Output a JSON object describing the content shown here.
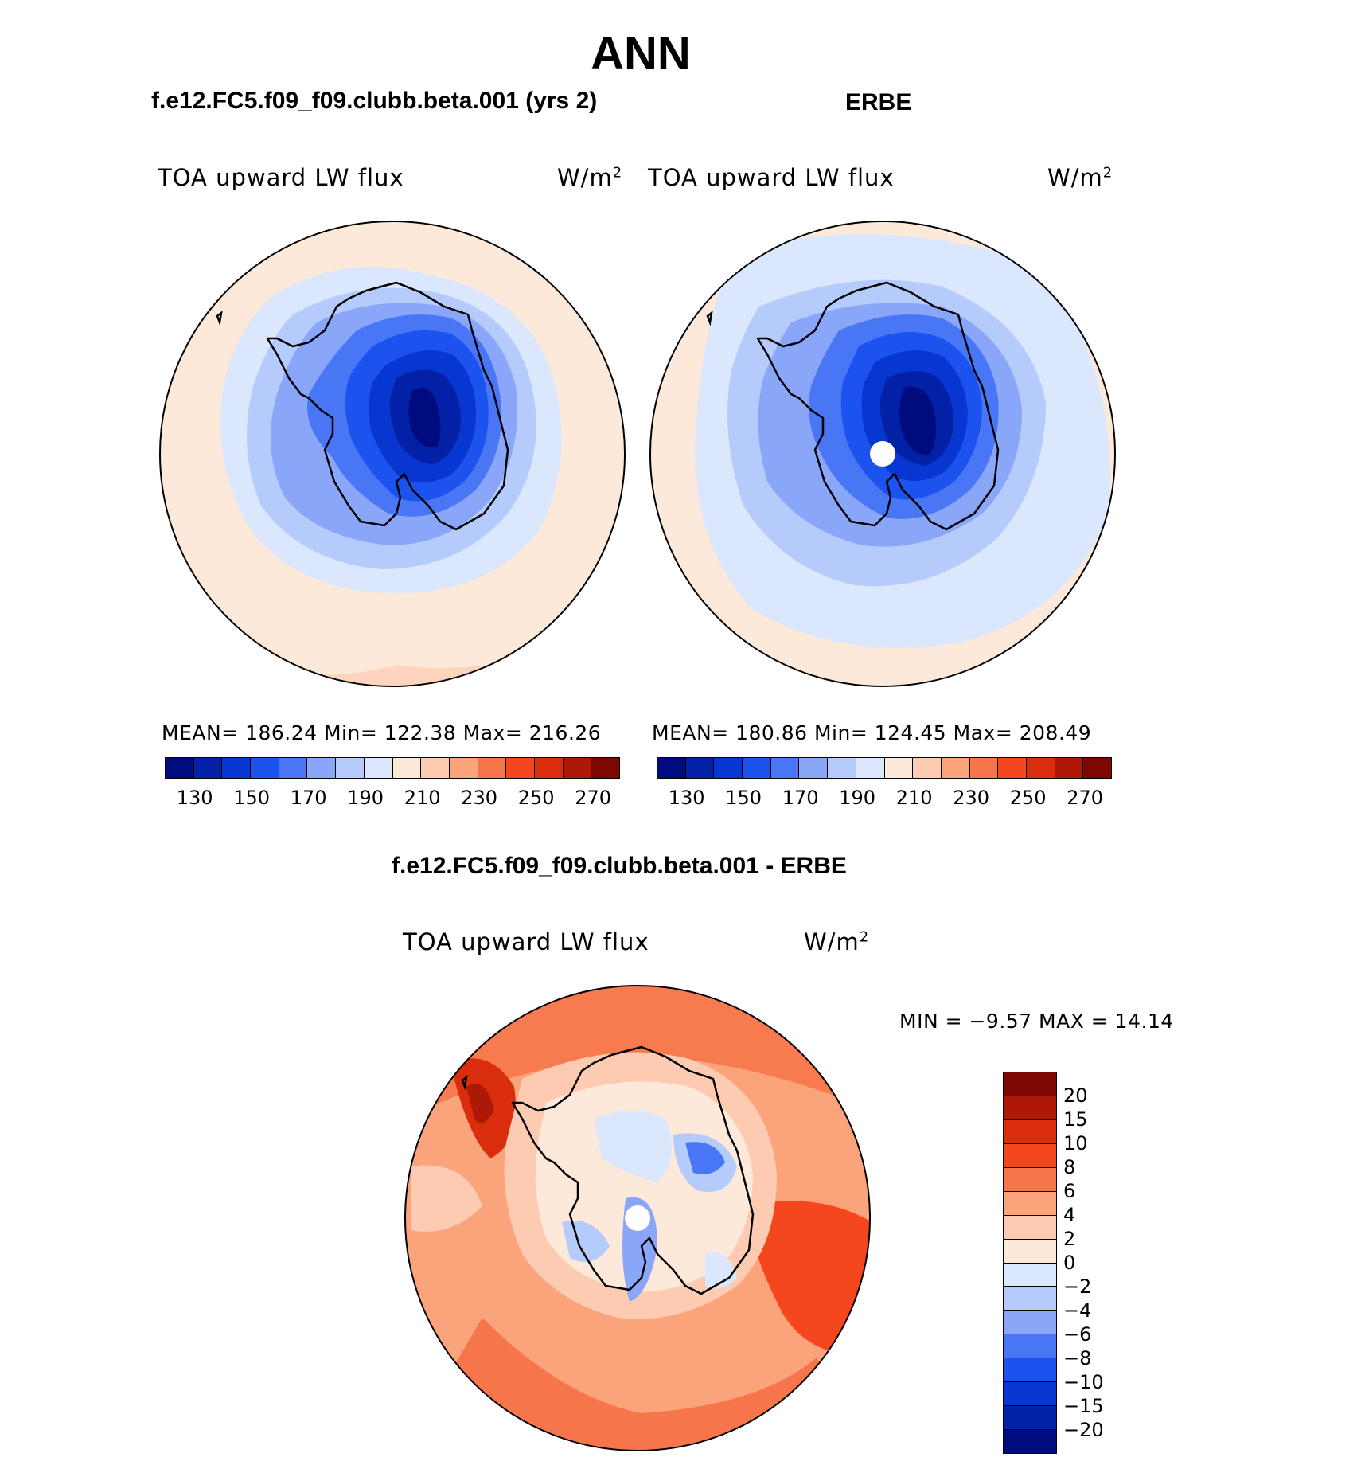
{
  "page": {
    "title": "ANN",
    "diff_title": "f.e12.FC5.f09_f09.clubb.beta.001 - ERBE"
  },
  "panels": [
    {
      "case_title": "f.e12.FC5.f09_f09.clubb.beta.001 (yrs 2)",
      "label_left": "TOA upward LW flux",
      "label_right_base": "W/m",
      "label_right_sup": "2",
      "stats": "MEAN=  186.24   Min=  122.38   Max=  216.26",
      "mean": 186.24,
      "min": 122.38,
      "max": 216.26
    },
    {
      "case_title": "ERBE",
      "label_left": "TOA upward LW flux",
      "label_right_base": "W/m",
      "label_right_sup": "2",
      "stats": "MEAN=  180.86   Min=  124.45   Max=  208.49",
      "mean": 180.86,
      "min": 124.45,
      "max": 208.49
    },
    {
      "label_left": "TOA upward LW flux",
      "label_right_base": "W/m",
      "label_right_sup": "2",
      "stats": "MIN =    −9.57  MAX =    14.14",
      "min": -9.57,
      "max": 14.14
    }
  ],
  "colorbar_main": {
    "colors": [
      "#000c7d",
      "#0321a6",
      "#0737d0",
      "#1c52ee",
      "#4876f5",
      "#8aa6f8",
      "#b5cbfb",
      "#dbe7fd",
      "#fde9da",
      "#fccbb1",
      "#fba37b",
      "#f7754a",
      "#f4471e",
      "#da2d0d",
      "#ae1806",
      "#7d0802"
    ],
    "tick_labels": [
      "130",
      "150",
      "170",
      "190",
      "210",
      "230",
      "250",
      "270"
    ]
  },
  "colorbar_diff": {
    "colors": [
      "#7d0802",
      "#ae1806",
      "#da2d0d",
      "#f4471e",
      "#f7754a",
      "#fba37b",
      "#fccbb1",
      "#fde9da",
      "#dbe7fd",
      "#b5cbfb",
      "#8aa6f8",
      "#4876f5",
      "#1c52ee",
      "#0737d0",
      "#0321a6",
      "#000c7d"
    ],
    "tick_labels": [
      "20",
      "15",
      "10",
      "8",
      "6",
      "4",
      "2",
      "0",
      "−2",
      "−4",
      "−6",
      "−8",
      "−10",
      "−15",
      "−20"
    ]
  }
}
